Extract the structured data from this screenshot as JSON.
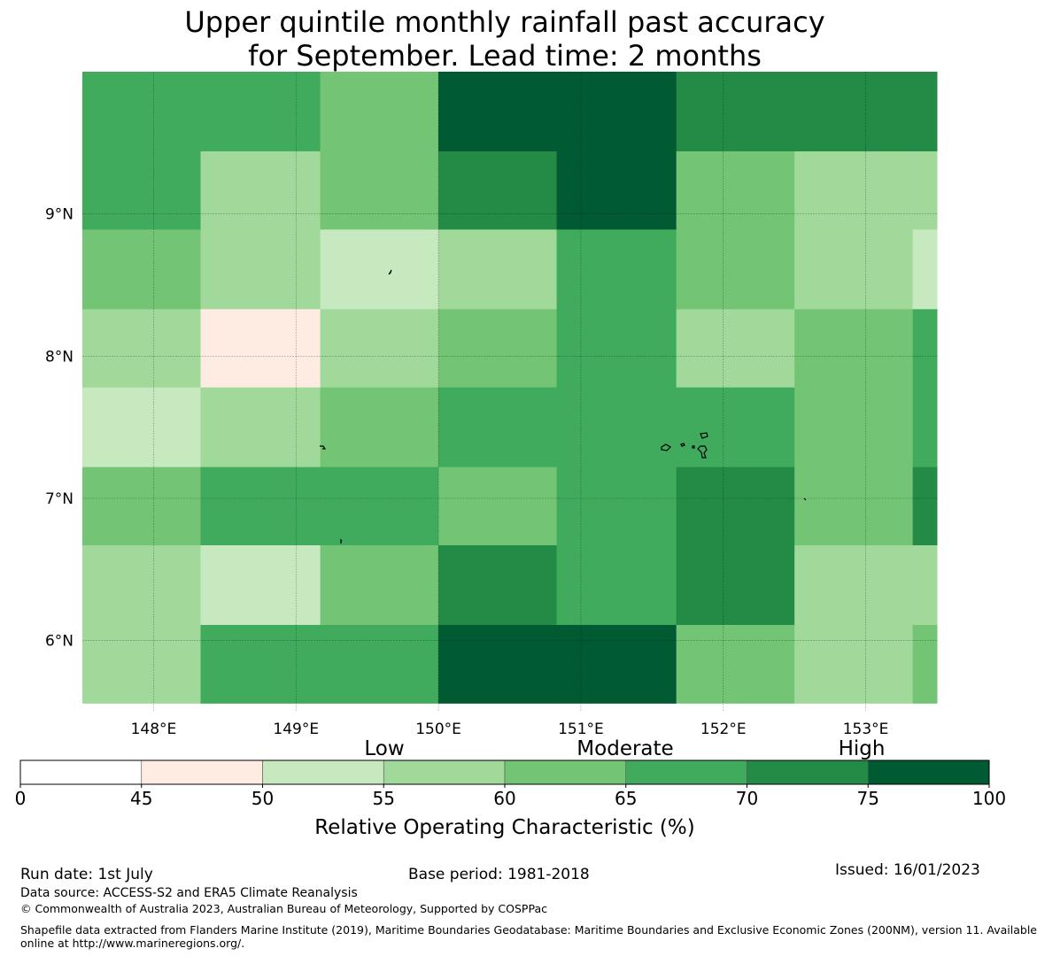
{
  "title_line1": "Upper quintile monthly rainfall past accuracy",
  "title_line2": "for September. Lead time: 2 months",
  "chart_data": {
    "type": "heatmap",
    "x_ticks": [
      "148°E",
      "149°E",
      "150°E",
      "151°E",
      "152°E",
      "153°E"
    ],
    "y_ticks": [
      "9°N",
      "8°N",
      "7°N",
      "6°N"
    ],
    "x_tick_values": [
      148,
      149,
      150,
      151,
      152,
      153
    ],
    "y_tick_values": [
      9,
      8,
      7,
      6
    ],
    "xlim": [
      147.5,
      153.5
    ],
    "ylim": [
      5.5,
      10.0
    ],
    "grid": true,
    "cell_lon_edges": [
      147.5,
      148.33,
      149.17,
      150.0,
      150.83,
      151.67,
      152.5,
      153.33,
      153.5
    ],
    "cell_lat_edges": [
      10.0,
      9.44,
      8.89,
      8.33,
      7.78,
      7.22,
      6.67,
      6.11,
      5.56
    ],
    "roc_bins": [
      [
        70,
        70,
        65,
        100,
        100,
        75,
        75,
        75
      ],
      [
        70,
        60,
        65,
        75,
        100,
        65,
        60,
        60
      ],
      [
        65,
        60,
        55,
        60,
        70,
        65,
        60,
        55
      ],
      [
        60,
        50,
        60,
        65,
        70,
        60,
        65,
        70
      ],
      [
        55,
        60,
        65,
        70,
        70,
        70,
        65,
        70
      ],
      [
        65,
        70,
        70,
        65,
        70,
        75,
        65,
        75
      ],
      [
        60,
        55,
        65,
        75,
        70,
        75,
        60,
        60
      ],
      [
        60,
        70,
        70,
        100,
        100,
        65,
        60,
        65
      ]
    ],
    "colorbar": {
      "label": "Relative Operating Characteristic (%)",
      "ticks": [
        "0",
        "45",
        "50",
        "55",
        "60",
        "65",
        "70",
        "75",
        "100"
      ],
      "boundaries": [
        0,
        45,
        50,
        55,
        60,
        65,
        70,
        75,
        100
      ],
      "colors": [
        "#ffffff",
        "#feebe2",
        "#c7e9c0",
        "#a1d99b",
        "#74c476",
        "#41ab5d",
        "#238b45",
        "#005a32"
      ],
      "categories": [
        "Low",
        "Moderate",
        "High"
      ]
    }
  },
  "footer": {
    "run_date": "Run date: 1st July",
    "base_period": "Base period: 1981-2018",
    "issued": "Issued: 16/01/2023",
    "data_source": "Data source: ACCESS-S2 and ERA5 Climate Reanalysis",
    "copyright": "© Commonwealth of Australia 2023, Australian Bureau of Meteorology, Supported by COSPPac",
    "shapefile_line1": "Shapefile data extracted from Flanders Marine Institute (2019), Maritime Boundaries Geodatabase: Maritime Boundaries and Exclusive Economic Zones (200NM), version 11. Available",
    "shapefile_line2": "online at http://www.marineregions.org/."
  }
}
